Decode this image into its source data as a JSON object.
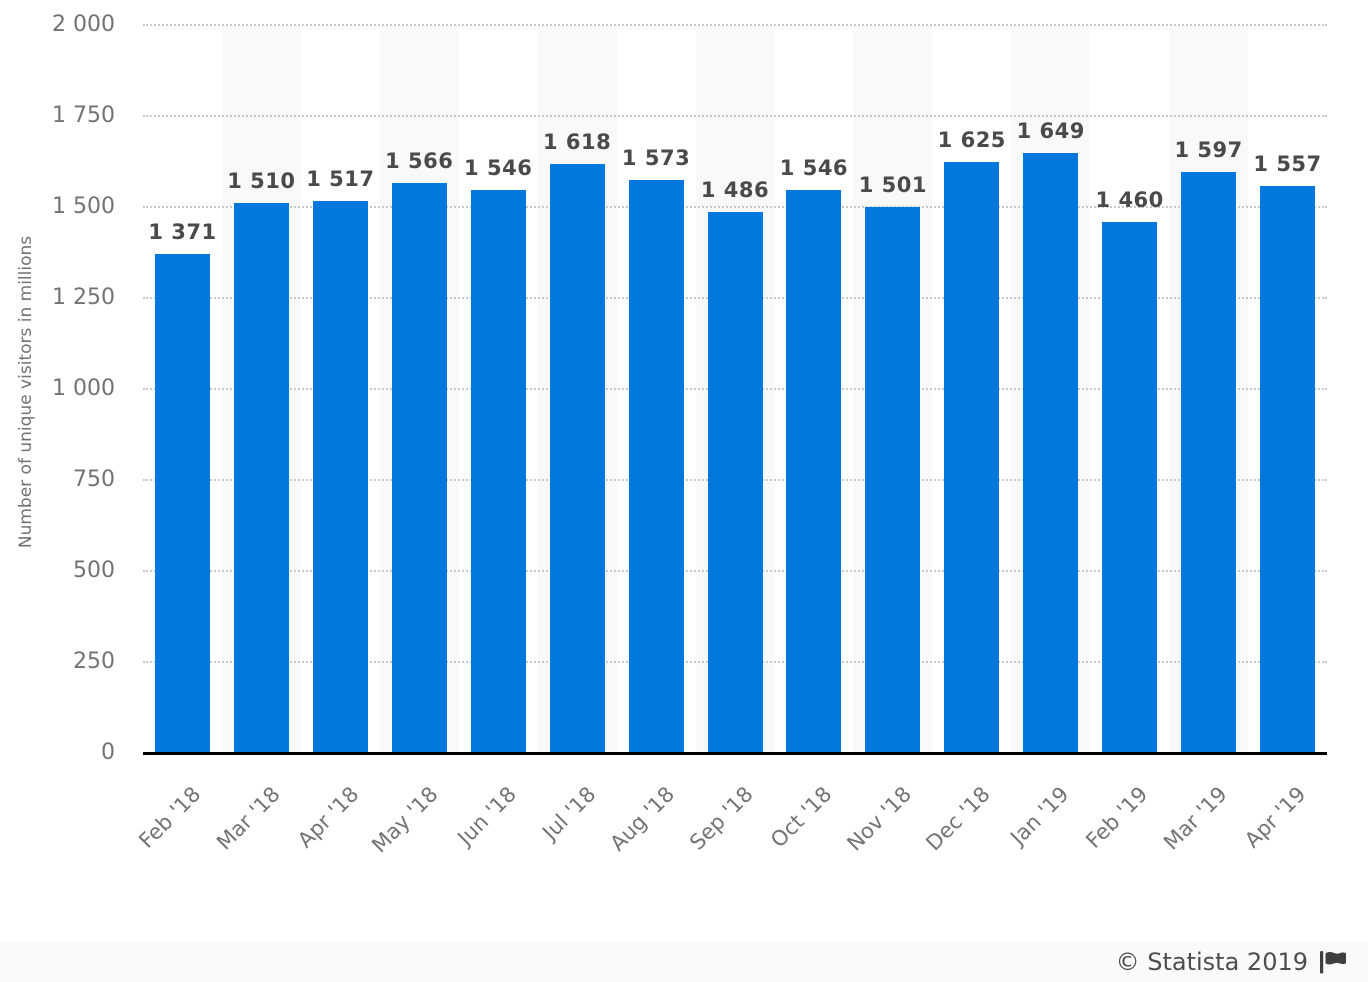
{
  "chart_data": {
    "type": "bar",
    "title": "",
    "xlabel": "",
    "ylabel": "Number of unique visitors in millions",
    "ylim": [
      0,
      2000
    ],
    "grid": "horizontal-dotted",
    "legend": "none",
    "layout_hint": "alternating light column bands behind every second bar",
    "categories": [
      "Feb '18",
      "Mar '18",
      "Apr '18",
      "May '18",
      "Jun '18",
      "Jul '18",
      "Aug '18",
      "Sep '18",
      "Oct '18",
      "Nov '18",
      "Dec '18",
      "Jan '19",
      "Feb '19",
      "Mar '19",
      "Apr '19"
    ],
    "values": [
      1371,
      1510,
      1517,
      1566,
      1546,
      1618,
      1573,
      1486,
      1546,
      1501,
      1625,
      1649,
      1460,
      1597,
      1557
    ],
    "value_labels": [
      "1 371",
      "1 510",
      "1 517",
      "1 566",
      "1 546",
      "1 618",
      "1 573",
      "1 486",
      "1 546",
      "1 501",
      "1 625",
      "1 649",
      "1 460",
      "1 597",
      "1 557"
    ],
    "yticks": [
      {
        "value": 0,
        "label": "0"
      },
      {
        "value": 250,
        "label": "250"
      },
      {
        "value": 500,
        "label": "500"
      },
      {
        "value": 750,
        "label": "750"
      },
      {
        "value": 1000,
        "label": "1 000"
      },
      {
        "value": 1250,
        "label": "1 250"
      },
      {
        "value": 1500,
        "label": "1 500"
      },
      {
        "value": 1750,
        "label": "1 750"
      },
      {
        "value": 2000,
        "label": "2 000"
      }
    ],
    "colors": {
      "bar": "#0278df",
      "stripe": "#f9f9f9",
      "gridline": "#c9c9c9",
      "axis_line": "#000000",
      "tick_label": "#737373",
      "value_label": "#4a4a4a"
    }
  },
  "footer": {
    "attribution": "© Statista 2019",
    "icon": "flag-icon",
    "text_color": "#4d4d4d",
    "background": "#fafafa"
  }
}
